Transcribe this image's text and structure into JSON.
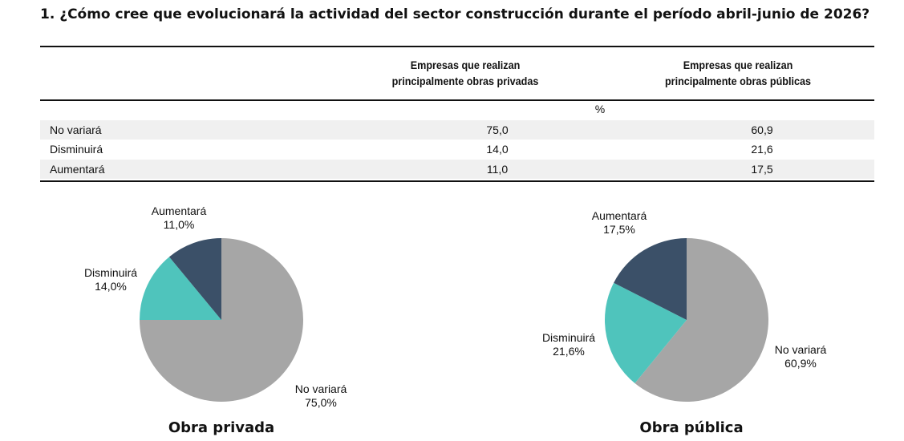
{
  "title": "1. ¿Cómo cree que evolucionará la actividad del sector construcción durante el período abril-junio de 2026?",
  "table": {
    "col1_line1": "Empresas que realizan",
    "col1_line2": "principalmente obras privadas",
    "col2_line1": "Empresas que realizan",
    "col2_line2": "principalmente obras públicas",
    "unit": "%",
    "rows": [
      {
        "label": "No variará",
        "privadas": "75,0",
        "publicas": "60,9"
      },
      {
        "label": "Disminuirá",
        "privadas": "14,0",
        "publicas": "21,6"
      },
      {
        "label": "Aumentará",
        "privadas": "11,0",
        "publicas": "17,5"
      }
    ]
  },
  "chart_data": [
    {
      "type": "pie",
      "title": "Obra privada",
      "slices": [
        {
          "label": "No variará",
          "value": 75.0,
          "value_label": "75,0%",
          "color": "#a6a6a6"
        },
        {
          "label": "Disminuirá",
          "value": 14.0,
          "value_label": "14,0%",
          "color": "#4fc4bc"
        },
        {
          "label": "Aumentará",
          "value": 11.0,
          "value_label": "11,0%",
          "color": "#3b5068"
        }
      ]
    },
    {
      "type": "pie",
      "title": "Obra pública",
      "slices": [
        {
          "label": "No variará",
          "value": 60.9,
          "value_label": "60,9%",
          "color": "#a6a6a6"
        },
        {
          "label": "Disminuirá",
          "value": 21.6,
          "value_label": "21,6%",
          "color": "#4fc4bc"
        },
        {
          "label": "Aumentará",
          "value": 17.5,
          "value_label": "17,5%",
          "color": "#3b5068"
        }
      ]
    }
  ]
}
